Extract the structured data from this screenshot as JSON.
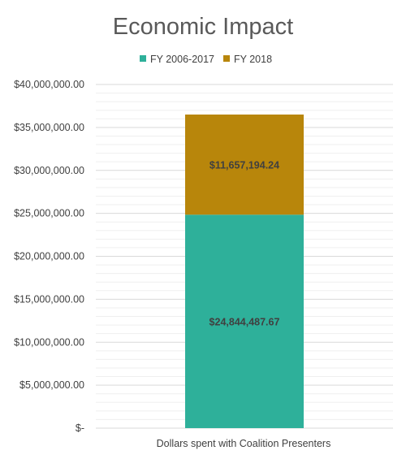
{
  "chart_data": {
    "type": "bar",
    "stacked": true,
    "title": "Economic Impact",
    "categories": [
      "Dollars spent with Coalition Presenters"
    ],
    "series": [
      {
        "name": "FY 2006-2017",
        "values": [
          24844487.67
        ],
        "label": "$24,844,487.67",
        "color": "#2eb09a"
      },
      {
        "name": "FY 2018",
        "values": [
          11657194.24
        ],
        "label": "$11,657,194.24",
        "color": "#b8860b"
      }
    ],
    "ylim": [
      0,
      40000000
    ],
    "yticks": [
      {
        "value": 0,
        "label": "$-"
      },
      {
        "value": 5000000,
        "label": "$5,000,000.00"
      },
      {
        "value": 10000000,
        "label": "$10,000,000.00"
      },
      {
        "value": 15000000,
        "label": "$15,000,000.00"
      },
      {
        "value": 20000000,
        "label": "$20,000,000.00"
      },
      {
        "value": 25000000,
        "label": "$25,000,000.00"
      },
      {
        "value": 30000000,
        "label": "$30,000,000.00"
      },
      {
        "value": 35000000,
        "label": "$35,000,000.00"
      },
      {
        "value": 40000000,
        "label": "$40,000,000.00"
      }
    ],
    "minor_step": 1000000,
    "grid": true,
    "legend_position": "top"
  }
}
